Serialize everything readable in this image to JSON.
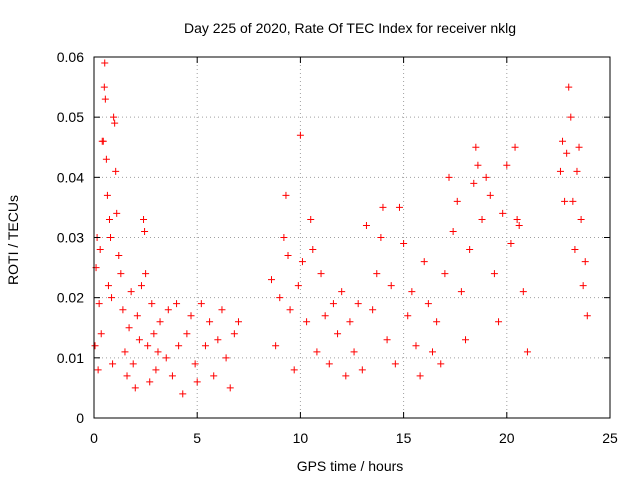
{
  "chart_data": {
    "type": "scatter",
    "title": "Day 225 of 2020, Rate Of TEC Index for receiver nklg",
    "xlabel": "GPS time / hours",
    "ylabel": "ROTI / TECUs",
    "xlim": [
      0,
      25
    ],
    "ylim": [
      0,
      0.06
    ],
    "xticks": [
      0,
      5,
      10,
      15,
      20,
      25
    ],
    "yticks": [
      0,
      0.01,
      0.02,
      0.03,
      0.04,
      0.05,
      0.06
    ],
    "xtick_labels": [
      "0",
      "5",
      "10",
      "15",
      "20",
      "25"
    ],
    "ytick_labels": [
      "0",
      "0.01",
      "0.02",
      "0.03",
      "0.04",
      "0.05",
      "0.06"
    ],
    "grid": true,
    "marker": "+",
    "color": "#ff0000",
    "series": [
      {
        "points": [
          [
            0.05,
            0.012
          ],
          [
            0.1,
            0.025
          ],
          [
            0.15,
            0.03
          ],
          [
            0.2,
            0.008
          ],
          [
            0.25,
            0.019
          ],
          [
            0.3,
            0.028
          ],
          [
            0.35,
            0.014
          ],
          [
            0.4,
            0.046
          ],
          [
            0.45,
            0.046
          ],
          [
            0.5,
            0.055
          ],
          [
            0.52,
            0.059
          ],
          [
            0.55,
            0.053
          ],
          [
            0.6,
            0.043
          ],
          [
            0.65,
            0.037
          ],
          [
            0.7,
            0.022
          ],
          [
            0.75,
            0.033
          ],
          [
            0.8,
            0.03
          ],
          [
            0.85,
            0.02
          ],
          [
            0.9,
            0.009
          ],
          [
            0.95,
            0.05
          ],
          [
            1.0,
            0.049
          ],
          [
            1.05,
            0.041
          ],
          [
            1.1,
            0.034
          ],
          [
            1.2,
            0.027
          ],
          [
            1.3,
            0.024
          ],
          [
            1.4,
            0.018
          ],
          [
            1.5,
            0.011
          ],
          [
            1.6,
            0.007
          ],
          [
            1.7,
            0.015
          ],
          [
            1.8,
            0.021
          ],
          [
            1.9,
            0.009
          ],
          [
            2.0,
            0.005
          ],
          [
            2.1,
            0.017
          ],
          [
            2.2,
            0.013
          ],
          [
            2.3,
            0.022
          ],
          [
            2.4,
            0.033
          ],
          [
            2.45,
            0.031
          ],
          [
            2.5,
            0.024
          ],
          [
            2.6,
            0.012
          ],
          [
            2.7,
            0.006
          ],
          [
            2.8,
            0.019
          ],
          [
            2.9,
            0.014
          ],
          [
            3.0,
            0.008
          ],
          [
            3.1,
            0.011
          ],
          [
            3.2,
            0.016
          ],
          [
            3.5,
            0.01
          ],
          [
            3.6,
            0.018
          ],
          [
            3.8,
            0.007
          ],
          [
            4.0,
            0.019
          ],
          [
            4.1,
            0.012
          ],
          [
            4.3,
            0.004
          ],
          [
            4.5,
            0.014
          ],
          [
            4.7,
            0.017
          ],
          [
            4.9,
            0.009
          ],
          [
            5.0,
            0.006
          ],
          [
            5.2,
            0.019
          ],
          [
            5.4,
            0.012
          ],
          [
            5.6,
            0.016
          ],
          [
            5.8,
            0.007
          ],
          [
            6.0,
            0.013
          ],
          [
            6.2,
            0.018
          ],
          [
            6.4,
            0.01
          ],
          [
            6.6,
            0.005
          ],
          [
            6.8,
            0.014
          ],
          [
            7.0,
            0.016
          ],
          [
            8.6,
            0.023
          ],
          [
            8.8,
            0.012
          ],
          [
            9.0,
            0.02
          ],
          [
            9.2,
            0.03
          ],
          [
            9.3,
            0.037
          ],
          [
            9.4,
            0.027
          ],
          [
            9.5,
            0.018
          ],
          [
            9.7,
            0.008
          ],
          [
            9.9,
            0.022
          ],
          [
            10.0,
            0.047
          ],
          [
            10.1,
            0.026
          ],
          [
            10.3,
            0.016
          ],
          [
            10.5,
            0.033
          ],
          [
            10.6,
            0.028
          ],
          [
            10.8,
            0.011
          ],
          [
            11.0,
            0.024
          ],
          [
            11.2,
            0.017
          ],
          [
            11.4,
            0.009
          ],
          [
            11.6,
            0.019
          ],
          [
            11.8,
            0.014
          ],
          [
            12.0,
            0.021
          ],
          [
            12.2,
            0.007
          ],
          [
            12.4,
            0.016
          ],
          [
            12.6,
            0.011
          ],
          [
            12.8,
            0.019
          ],
          [
            13.0,
            0.008
          ],
          [
            13.2,
            0.032
          ],
          [
            13.5,
            0.018
          ],
          [
            13.7,
            0.024
          ],
          [
            13.9,
            0.03
          ],
          [
            14.0,
            0.035
          ],
          [
            14.2,
            0.013
          ],
          [
            14.4,
            0.022
          ],
          [
            14.6,
            0.009
          ],
          [
            14.8,
            0.035
          ],
          [
            15.0,
            0.029
          ],
          [
            15.2,
            0.017
          ],
          [
            15.4,
            0.021
          ],
          [
            15.6,
            0.012
          ],
          [
            15.8,
            0.007
          ],
          [
            16.0,
            0.026
          ],
          [
            16.2,
            0.019
          ],
          [
            16.4,
            0.011
          ],
          [
            16.6,
            0.016
          ],
          [
            16.8,
            0.009
          ],
          [
            17.0,
            0.024
          ],
          [
            17.2,
            0.04
          ],
          [
            17.4,
            0.031
          ],
          [
            17.6,
            0.036
          ],
          [
            17.8,
            0.021
          ],
          [
            18.0,
            0.013
          ],
          [
            18.2,
            0.028
          ],
          [
            18.4,
            0.039
          ],
          [
            18.5,
            0.045
          ],
          [
            18.6,
            0.042
          ],
          [
            18.8,
            0.033
          ],
          [
            19.0,
            0.04
          ],
          [
            19.2,
            0.037
          ],
          [
            19.4,
            0.024
          ],
          [
            19.6,
            0.016
          ],
          [
            19.8,
            0.034
          ],
          [
            20.0,
            0.042
          ],
          [
            20.2,
            0.029
          ],
          [
            20.4,
            0.045
          ],
          [
            20.5,
            0.033
          ],
          [
            20.6,
            0.032
          ],
          [
            20.8,
            0.021
          ],
          [
            21.0,
            0.011
          ],
          [
            22.6,
            0.041
          ],
          [
            22.7,
            0.046
          ],
          [
            22.8,
            0.036
          ],
          [
            22.9,
            0.044
          ],
          [
            23.0,
            0.055
          ],
          [
            23.1,
            0.05
          ],
          [
            23.2,
            0.036
          ],
          [
            23.3,
            0.028
          ],
          [
            23.4,
            0.041
          ],
          [
            23.5,
            0.045
          ],
          [
            23.6,
            0.033
          ],
          [
            23.7,
            0.022
          ],
          [
            23.8,
            0.026
          ],
          [
            23.9,
            0.017
          ]
        ]
      }
    ]
  }
}
